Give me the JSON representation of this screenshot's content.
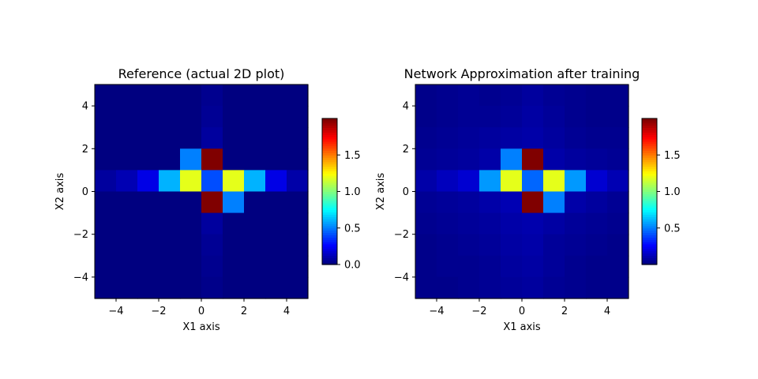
{
  "chart_data": [
    {
      "type": "heatmap",
      "title": "Reference (actual 2D plot)",
      "xlabel": "X1 axis",
      "ylabel": "X2 axis",
      "xlim": [
        -5,
        5
      ],
      "ylim": [
        -5,
        5
      ],
      "xticks": [
        -4,
        -2,
        0,
        2,
        4
      ],
      "yticks": [
        -4,
        -2,
        0,
        2,
        4
      ],
      "cells_x": [
        -4.5,
        -3.5,
        -2.5,
        -1.5,
        -0.5,
        0.5,
        1.5,
        2.5,
        3.5,
        4.5
      ],
      "cells_y": [
        4.5,
        3.5,
        2.5,
        1.5,
        0.5,
        -0.5,
        -1.5,
        -2.5,
        -3.5,
        -4.5
      ],
      "z": [
        [
          0.0,
          0.0,
          0.0,
          0.0,
          0.0,
          0.03,
          0.0,
          0.0,
          0.0,
          0.0
        ],
        [
          0.0,
          0.0,
          0.0,
          0.0,
          0.0,
          0.04,
          0.0,
          0.0,
          0.0,
          0.0
        ],
        [
          0.0,
          0.0,
          0.0,
          0.0,
          0.0,
          0.06,
          0.0,
          0.0,
          0.0,
          0.0
        ],
        [
          0.0,
          0.0,
          0.0,
          0.0,
          0.5,
          2.0,
          0.0,
          0.0,
          0.0,
          0.0
        ],
        [
          0.06,
          0.1,
          0.2,
          0.6,
          1.2,
          0.4,
          1.2,
          0.6,
          0.2,
          0.08
        ],
        [
          0.0,
          0.0,
          0.0,
          0.0,
          0.0,
          2.0,
          0.5,
          0.0,
          0.0,
          0.0
        ],
        [
          0.0,
          0.0,
          0.0,
          0.0,
          0.0,
          0.06,
          0.0,
          0.0,
          0.0,
          0.0
        ],
        [
          0.0,
          0.0,
          0.0,
          0.0,
          0.0,
          0.04,
          0.0,
          0.0,
          0.0,
          0.0
        ],
        [
          0.0,
          0.0,
          0.0,
          0.0,
          0.0,
          0.03,
          0.0,
          0.0,
          0.0,
          0.0
        ],
        [
          0.0,
          0.0,
          0.0,
          0.0,
          0.0,
          0.02,
          0.0,
          0.0,
          0.0,
          0.0
        ]
      ],
      "colormap": "jet",
      "vmin": 0.0,
      "vmax": 2.0,
      "colorbar_ticks": [
        "0.0",
        "0.5",
        "1.0",
        "1.5"
      ]
    },
    {
      "type": "heatmap",
      "title": "Network Approximation after training",
      "xlabel": "X1 axis",
      "ylabel": "X2 axis",
      "xlim": [
        -5,
        5
      ],
      "ylim": [
        -5,
        5
      ],
      "xticks": [
        -4,
        -2,
        0,
        2,
        4
      ],
      "yticks": [
        -4,
        -2,
        0,
        2,
        4
      ],
      "cells_x": [
        -4.5,
        -3.5,
        -2.5,
        -1.5,
        -0.5,
        0.5,
        1.5,
        2.5,
        3.5,
        4.5
      ],
      "cells_y": [
        4.5,
        3.5,
        2.5,
        1.5,
        0.5,
        -0.5,
        -1.5,
        -2.5,
        -3.5,
        -4.5
      ],
      "z": [
        [
          0.02,
          0.03,
          0.04,
          0.03,
          0.04,
          0.06,
          0.04,
          0.03,
          0.02,
          0.02
        ],
        [
          0.02,
          0.03,
          0.04,
          0.04,
          0.05,
          0.07,
          0.05,
          0.03,
          0.02,
          0.02
        ],
        [
          0.03,
          0.04,
          0.05,
          0.06,
          0.07,
          0.08,
          0.06,
          0.04,
          0.03,
          0.03
        ],
        [
          0.04,
          0.05,
          0.06,
          0.08,
          0.5,
          2.0,
          0.08,
          0.06,
          0.05,
          0.04
        ],
        [
          0.08,
          0.12,
          0.16,
          0.55,
          1.2,
          0.45,
          1.2,
          0.55,
          0.16,
          0.1
        ],
        [
          0.04,
          0.05,
          0.06,
          0.08,
          0.1,
          2.0,
          0.5,
          0.08,
          0.06,
          0.04
        ],
        [
          0.03,
          0.04,
          0.05,
          0.06,
          0.08,
          0.09,
          0.07,
          0.05,
          0.04,
          0.03
        ],
        [
          0.02,
          0.03,
          0.04,
          0.05,
          0.07,
          0.08,
          0.05,
          0.04,
          0.03,
          0.02
        ],
        [
          0.02,
          0.03,
          0.03,
          0.04,
          0.06,
          0.07,
          0.05,
          0.03,
          0.02,
          0.02
        ],
        [
          0.02,
          0.02,
          0.03,
          0.04,
          0.05,
          0.06,
          0.04,
          0.03,
          0.02,
          0.02
        ]
      ],
      "colormap": "jet",
      "vmin": 0.0,
      "vmax": 2.0,
      "colorbar_ticks": [
        "0.5",
        "1.0",
        "1.5"
      ]
    }
  ]
}
